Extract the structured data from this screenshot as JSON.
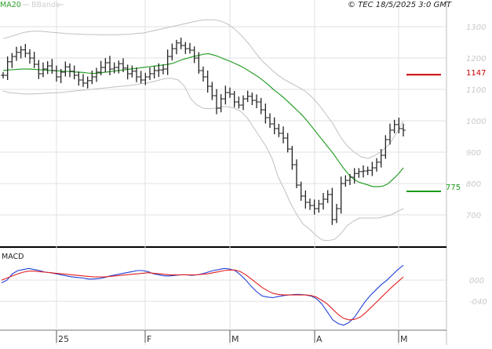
{
  "header": {
    "legend_ma": "MA20",
    "legend_bb": "BBands",
    "copyright": "© TEC 18/5/2025 3:0 GMT"
  },
  "levels": {
    "red_label": "1147",
    "green_label": "775"
  },
  "macd_panel": {
    "label": "MACD"
  },
  "colors": {
    "price": "#222222",
    "ma": "#2ca02c",
    "bbands": "#c0c0c0",
    "macd": "#1f3fd6",
    "signal": "#e02020",
    "red_level": "#cc0000",
    "green_level": "#1a9a1a",
    "grid": "#e2e2e2"
  },
  "chart_data": [
    {
      "type": "ohlc",
      "title": "",
      "yticks": [
        700,
        800,
        900,
        1000,
        1100,
        1200,
        1300
      ],
      "ylim": [
        610,
        1340
      ],
      "xticks": [
        {
          "label": "25",
          "i": 12
        },
        {
          "label": "F",
          "i": 32
        },
        {
          "label": "M",
          "i": 51
        },
        {
          "label": "A",
          "i": 70
        },
        {
          "label": "M",
          "i": 89
        }
      ],
      "levels": [
        {
          "name": "red",
          "value": 1147
        },
        {
          "name": "green",
          "value": 775
        }
      ],
      "close": [
        1145,
        1188,
        1205,
        1218,
        1226,
        1215,
        1200,
        1180,
        1150,
        1165,
        1175,
        1160,
        1140,
        1155,
        1172,
        1158,
        1145,
        1130,
        1120,
        1128,
        1140,
        1155,
        1170,
        1185,
        1165,
        1170,
        1182,
        1168,
        1150,
        1158,
        1140,
        1130,
        1140,
        1150,
        1160,
        1162,
        1165,
        1205,
        1230,
        1248,
        1240,
        1230,
        1225,
        1200,
        1160,
        1140,
        1110,
        1080,
        1040,
        1070,
        1090,
        1085,
        1060,
        1050,
        1070,
        1078,
        1065,
        1060,
        1035,
        1010,
        990,
        975,
        960,
        945,
        910,
        860,
        795,
        760,
        740,
        730,
        720,
        735,
        750,
        765,
        685,
        720,
        800,
        810,
        820,
        832,
        838,
        840,
        842,
        850,
        868,
        890,
        940,
        970,
        988,
        975,
        970
      ],
      "ma20": [
        1160,
        1162,
        1163,
        1164,
        1165,
        1165,
        1164,
        1163,
        1162,
        1161,
        1160,
        1159,
        1158,
        1157,
        1156,
        1155,
        1154,
        1152,
        1151,
        1152,
        1154,
        1156,
        1158,
        1160,
        1162,
        1164,
        1166,
        1168,
        1170,
        1172,
        1174,
        1176,
        1178,
        1180,
        1184,
        1190,
        1196,
        1200,
        1205,
        1208,
        1212,
        1214,
        1210,
        1205,
        1198,
        1192,
        1185,
        1178,
        1170,
        1160,
        1150,
        1140,
        1128,
        1115,
        1100,
        1088,
        1075,
        1060,
        1045,
        1030,
        1014,
        995,
        975,
        955,
        935,
        915,
        895,
        872,
        850,
        830,
        815,
        805,
        800,
        795,
        790,
        790,
        792,
        800,
        815,
        830,
        850
      ],
      "bb_upper": [
        1262,
        1268,
        1275,
        1282,
        1285,
        1286,
        1284,
        1282,
        1280,
        1278,
        1277,
        1276,
        1275,
        1275,
        1274,
        1274,
        1274,
        1275,
        1276,
        1278,
        1280,
        1285,
        1290,
        1295,
        1300,
        1305,
        1310,
        1315,
        1320,
        1322,
        1322,
        1318,
        1308,
        1292,
        1270,
        1245,
        1215,
        1188,
        1168,
        1148,
        1132,
        1120,
        1108,
        1095,
        1075,
        1050,
        1020,
        990,
        950,
        920,
        900,
        885,
        880,
        890,
        905,
        925,
        960,
        1000
      ],
      "bb_lower": [
        1095,
        1090,
        1088,
        1086,
        1085,
        1086,
        1087,
        1088,
        1089,
        1090,
        1092,
        1094,
        1096,
        1098,
        1100,
        1102,
        1104,
        1106,
        1108,
        1110,
        1112,
        1115,
        1118,
        1120,
        1125,
        1130,
        1135,
        1135,
        1130,
        1110,
        1070,
        1050,
        1040,
        1038,
        1040,
        1045,
        1045,
        1040,
        1030,
        1010,
        980,
        950,
        920,
        880,
        820,
        780,
        735,
        700,
        670,
        655,
        635,
        620,
        618,
        622,
        640,
        665,
        680,
        690,
        690,
        690,
        690,
        695,
        700,
        710,
        720
      ],
      "ma_start": 0,
      "bb_start": 0
    },
    {
      "type": "line",
      "title": "",
      "ylim": [
        -90,
        55
      ],
      "yticks": [
        0,
        -40
      ],
      "ytick_labels": [
        "000",
        "-040"
      ],
      "series": [
        {
          "key": "macd",
          "values": [
            -5,
            0,
            12,
            18,
            20,
            22,
            20,
            18,
            15,
            14,
            12,
            10,
            8,
            6,
            5,
            4,
            2,
            2,
            3,
            5,
            8,
            10,
            12,
            14,
            16,
            18,
            18,
            16,
            12,
            10,
            8,
            8,
            9,
            10,
            10,
            9,
            10,
            12,
            15,
            18,
            20,
            22,
            21,
            18,
            10,
            0,
            -12,
            -22,
            -30,
            -32,
            -33,
            -31,
            -29,
            -28,
            -27,
            -27,
            -28,
            -30,
            -35,
            -45,
            -60,
            -75,
            -82,
            -85,
            -80,
            -70,
            -55,
            -40,
            -28,
            -18,
            -8,
            0,
            10,
            20,
            28
          ]
        },
        {
          "key": "signal",
          "values": [
            0,
            4,
            8,
            12,
            15,
            17,
            17,
            16,
            15,
            14,
            13,
            12,
            11,
            10,
            9,
            8,
            7,
            6,
            6,
            6,
            7,
            8,
            9,
            10,
            11,
            12,
            13,
            14,
            13,
            12,
            11,
            10,
            10,
            10,
            10,
            10,
            10,
            11,
            12,
            14,
            16,
            18,
            19,
            19,
            16,
            10,
            2,
            -6,
            -14,
            -20,
            -25,
            -27,
            -28,
            -28,
            -28,
            -28,
            -28,
            -29,
            -32,
            -38,
            -45,
            -55,
            -65,
            -72,
            -75,
            -74,
            -70,
            -62,
            -52,
            -42,
            -32,
            -22,
            -12,
            -3,
            6
          ]
        }
      ]
    }
  ]
}
